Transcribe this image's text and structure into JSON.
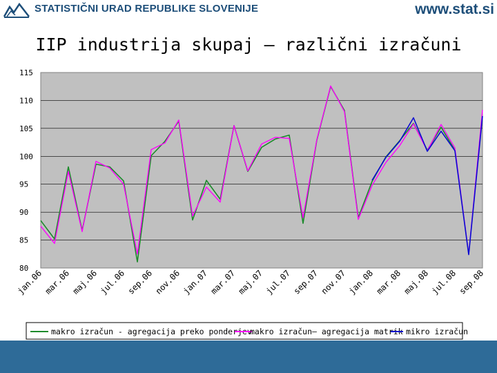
{
  "header": {
    "org_name": "STATISTIČNI URAD REPUBLIKE SLOVENIJE",
    "site": "www.stat.si",
    "logo_icon": "surs-logo-icon"
  },
  "colors": {
    "brand": "#1d4e79",
    "plot_background": "#c0c0c0",
    "footer": "#2e6b98",
    "series_makro_ponderji": "#1b8a2a",
    "series_makro_matrik": "#ff00ff",
    "series_mikro": "#0a0ad0"
  },
  "title": "IIP industrija skupaj – različni izračuni",
  "chart_data": {
    "type": "line",
    "title": "IIP industrija skupaj – različni izračuni",
    "xlabel": "",
    "ylabel": "",
    "ylim": [
      80,
      115
    ],
    "yticks": [
      80,
      85,
      90,
      95,
      100,
      105,
      110,
      115
    ],
    "grid": "horizontal",
    "legend": "bottom",
    "x": [
      "jan.06",
      "feb.06",
      "mar.06",
      "apr.06",
      "maj.06",
      "jun.06",
      "jul.06",
      "avg.06",
      "sep.06",
      "okt.06",
      "nov.06",
      "dec.06",
      "jan.07",
      "feb.07",
      "mar.07",
      "apr.07",
      "maj.07",
      "jun.07",
      "jul.07",
      "avg.07",
      "sep.07",
      "okt.07",
      "nov.07",
      "dec.07",
      "jan.08",
      "feb.08",
      "mar.08",
      "apr.08",
      "maj.08",
      "jun.08",
      "jul.08",
      "avg.08",
      "sep.08"
    ],
    "x_tick_labels": [
      "jan.06",
      "mar.06",
      "maj.06",
      "jul.06",
      "sep.06",
      "nov.06",
      "jan.07",
      "mar.07",
      "maj.07",
      "jul.07",
      "sep.07",
      "nov.07",
      "jan.08",
      "mar.08",
      "maj.08",
      "jul.08",
      "sep.08"
    ],
    "series": [
      {
        "name": "makro izračun - agregacija preko ponderjev",
        "color": "#1b8a2a",
        "values": [
          88.5,
          85.2,
          98.1,
          86.7,
          98.6,
          98.1,
          95.6,
          81.1,
          100.1,
          102.7,
          106.3,
          88.6,
          95.7,
          92.3,
          105.5,
          97.3,
          101.6,
          103.1,
          103.8,
          88.0,
          102.9,
          112.5,
          108.2,
          89.0,
          95.5,
          99.9,
          102.8,
          105.9,
          101.1,
          105.2,
          101.1,
          null,
          null
        ]
      },
      {
        "name": "makro izračun– agregacija matrik",
        "color": "#ff00ff",
        "values": [
          87.5,
          84.4,
          97.3,
          86.5,
          99.1,
          97.9,
          95.0,
          82.5,
          101.2,
          102.4,
          106.5,
          89.3,
          94.5,
          91.8,
          105.5,
          97.4,
          102.2,
          103.4,
          103.2,
          89.0,
          103.0,
          112.6,
          108.0,
          88.7,
          94.8,
          98.9,
          101.9,
          105.8,
          101.0,
          105.7,
          101.5,
          82.5,
          108.3
        ]
      },
      {
        "name": "mikro izračun",
        "color": "#0a0ad0",
        "values": [
          null,
          null,
          null,
          null,
          null,
          null,
          null,
          null,
          null,
          null,
          null,
          null,
          null,
          null,
          null,
          null,
          null,
          null,
          null,
          null,
          null,
          null,
          null,
          null,
          95.7,
          99.8,
          102.7,
          106.9,
          100.9,
          104.5,
          101.0,
          82.4,
          107.2
        ]
      }
    ]
  }
}
